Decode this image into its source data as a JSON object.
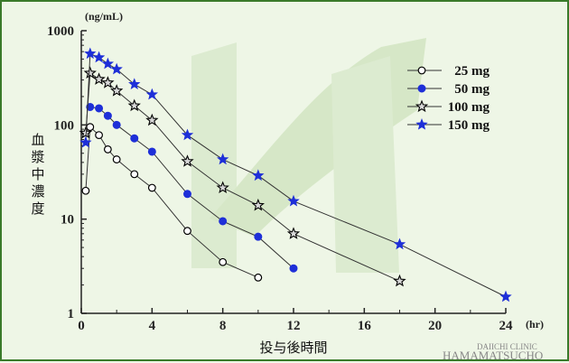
{
  "chart_data": {
    "type": "line",
    "yscale": "log",
    "ylim": [
      1,
      1000
    ],
    "xlim": [
      0,
      24
    ],
    "x_ticks": [
      "0",
      "4",
      "8",
      "12",
      "16",
      "20",
      "24"
    ],
    "y_ticks": [
      "1",
      "10",
      "100",
      "1000"
    ],
    "y_unit": "(ng/mL)",
    "x_unit": "(hr)",
    "xlabel": "投与後時間",
    "ylabel": "血漿中濃度",
    "legend_position": "top-right",
    "series": [
      {
        "name": "25 mg",
        "marker": "open-circle",
        "color": "#000000",
        "points": [
          [
            0.25,
            20
          ],
          [
            0.5,
            95
          ],
          [
            1,
            78
          ],
          [
            1.5,
            55
          ],
          [
            2,
            43
          ],
          [
            3,
            30
          ],
          [
            4,
            21.5
          ],
          [
            6,
            7.5
          ],
          [
            8,
            3.5
          ],
          [
            10,
            2.4
          ]
        ]
      },
      {
        "name": "50 mg",
        "marker": "filled-circle",
        "color": "#1e2fd8",
        "points": [
          [
            0.5,
            155
          ],
          [
            1,
            150
          ],
          [
            1.5,
            125
          ],
          [
            2,
            100
          ],
          [
            3,
            72
          ],
          [
            4,
            52
          ],
          [
            6,
            18.5
          ],
          [
            8,
            9.5
          ],
          [
            10,
            6.5
          ],
          [
            12,
            3.0
          ]
        ]
      },
      {
        "name": "100 mg",
        "marker": "open-star",
        "color": "#000000",
        "points": [
          [
            0.25,
            82
          ],
          [
            0.5,
            355
          ],
          [
            1,
            305
          ],
          [
            1.5,
            280
          ],
          [
            2,
            230
          ],
          [
            3,
            160
          ],
          [
            4,
            112
          ],
          [
            6,
            41
          ],
          [
            8,
            21.5
          ],
          [
            10,
            14
          ],
          [
            12,
            7
          ],
          [
            18,
            2.2
          ]
        ]
      },
      {
        "name": "150 mg",
        "marker": "filled-star",
        "color": "#1e2fd8",
        "points": [
          [
            0.25,
            65
          ],
          [
            0.5,
            570
          ],
          [
            1,
            520
          ],
          [
            1.5,
            445
          ],
          [
            2,
            390
          ],
          [
            3,
            270
          ],
          [
            4,
            210
          ],
          [
            6,
            78
          ],
          [
            8,
            43
          ],
          [
            10,
            29
          ],
          [
            12,
            15.5
          ],
          [
            18,
            5.4
          ],
          [
            24,
            1.5
          ]
        ]
      }
    ]
  },
  "watermark": {
    "line1": "DAIICHI CLINIC",
    "line2": "HAMAMATSUCHO"
  },
  "colors": {
    "background": "#eef6e6",
    "border": "#3a7a2a",
    "accent_blue": "#1e2fd8"
  }
}
